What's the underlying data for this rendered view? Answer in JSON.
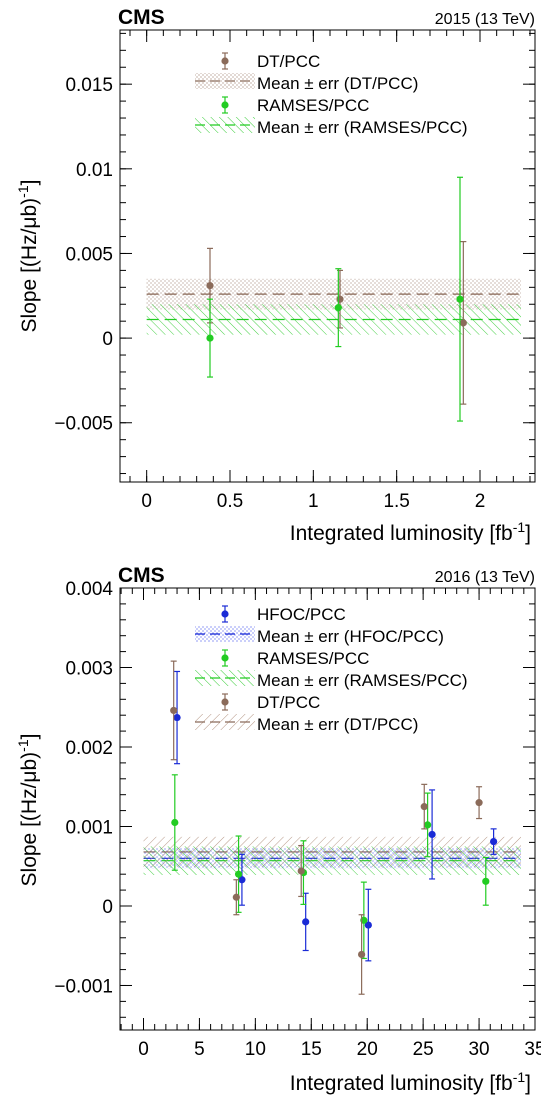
{
  "colors": {
    "dt": "#8b6b5a",
    "ramses": "#22cc22",
    "hfoc": "#1a2bd6"
  },
  "chart_data": [
    {
      "type": "scatter",
      "title": "CMS",
      "subtitle": "2015 (13 TeV)",
      "xlabel": "Integrated luminosity [fb",
      "xlabel_sup": "-1",
      "ylabel": "Slope [(Hz/μb)",
      "ylabel_sup": "-1",
      "xlim": [
        -0.16,
        2.33
      ],
      "ylim": [
        -0.0085,
        0.0182
      ],
      "xticks": [
        0,
        0.5,
        1,
        1.5,
        2
      ],
      "xtick_labels": [
        "0",
        "0.5",
        "1",
        "1.5",
        "2"
      ],
      "yticks": [
        -0.005,
        0,
        0.005,
        0.01,
        0.015
      ],
      "ytick_labels": [
        "−0.005",
        "0",
        "0.005",
        "0.01",
        "0.015"
      ],
      "series": [
        {
          "name": "DT/PCC",
          "color_key": "dt",
          "points": [
            {
              "x": 0.38,
              "y": 0.0031,
              "err": 0.0022
            },
            {
              "x": 1.16,
              "y": 0.0023,
              "err": 0.0017
            },
            {
              "x": 1.9,
              "y": 0.0009,
              "err": 0.0048
            }
          ],
          "mean": {
            "label": "Mean ± err (DT/PCC)",
            "value": 0.0026,
            "err": 0.0009
          }
        },
        {
          "name": "RAMSES/PCC",
          "color_key": "ramses",
          "points": [
            {
              "x": 0.38,
              "y": 0.0,
              "err": 0.0023
            },
            {
              "x": 1.15,
              "y": 0.0018,
              "err": 0.0023
            },
            {
              "x": 1.88,
              "y": 0.0023,
              "err": 0.0072
            }
          ],
          "mean": {
            "label": "Mean ± err (RAMSES/PCC)",
            "value": 0.0011,
            "err": 0.0009
          }
        }
      ]
    },
    {
      "type": "scatter",
      "title": "CMS",
      "subtitle": "2016 (13 TeV)",
      "xlabel": "Integrated luminosity [fb",
      "xlabel_sup": "-1",
      "ylabel": "Slope [(Hz/μb)",
      "ylabel_sup": "-1",
      "xlim": [
        -2.1,
        35
      ],
      "ylim": [
        -0.00156,
        0.004
      ],
      "xticks": [
        0,
        5,
        10,
        15,
        20,
        25,
        30,
        35
      ],
      "xtick_labels": [
        "0",
        "5",
        "10",
        "15",
        "20",
        "25",
        "30",
        "35"
      ],
      "yticks": [
        -0.001,
        0,
        0.001,
        0.002,
        0.003,
        0.004
      ],
      "ytick_labels": [
        "−0.001",
        "0",
        "0.001",
        "0.002",
        "0.003",
        "0.004"
      ],
      "series": [
        {
          "name": "HFOC/PCC",
          "color_key": "hfoc",
          "points": [
            {
              "x": 3.0,
              "y": 0.00237,
              "err": 0.00058
            },
            {
              "x": 8.8,
              "y": 0.00033,
              "err": 0.00032
            },
            {
              "x": 14.5,
              "y": -0.0002,
              "err": 0.00036
            },
            {
              "x": 20.1,
              "y": -0.00024,
              "err": 0.00045
            },
            {
              "x": 25.8,
              "y": 0.0009,
              "err": 0.00056
            },
            {
              "x": 31.3,
              "y": 0.00081,
              "err": 0.00016
            }
          ],
          "mean": {
            "label": "Mean ± err (HFOC/PCC)",
            "value": 0.0006,
            "err": 0.00013
          }
        },
        {
          "name": "RAMSES/PCC",
          "color_key": "ramses",
          "points": [
            {
              "x": 2.8,
              "y": 0.00105,
              "err": 0.0006
            },
            {
              "x": 8.5,
              "y": 0.0004,
              "err": 0.00048
            },
            {
              "x": 14.3,
              "y": 0.00042,
              "err": 0.0004
            },
            {
              "x": 19.7,
              "y": -0.00018,
              "err": 0.00048
            },
            {
              "x": 25.4,
              "y": 0.00102,
              "err": 0.0004
            },
            {
              "x": 30.6,
              "y": 0.00031,
              "err": 0.0003
            }
          ],
          "mean": {
            "label": "Mean ± err (RAMSES/PCC)",
            "value": 0.00057,
            "err": 0.00018
          }
        },
        {
          "name": "DT/PCC",
          "color_key": "dt",
          "points": [
            {
              "x": 2.7,
              "y": 0.00246,
              "err": 0.00062
            },
            {
              "x": 8.3,
              "y": 0.00011,
              "err": 0.00022
            },
            {
              "x": 14.1,
              "y": 0.00044,
              "err": 0.00032
            },
            {
              "x": 19.5,
              "y": -0.00061,
              "err": 0.0005
            },
            {
              "x": 25.1,
              "y": 0.00125,
              "err": 0.00028
            },
            {
              "x": 30.0,
              "y": 0.0013,
              "err": 0.0002
            }
          ],
          "mean": {
            "label": "Mean ± err (DT/PCC)",
            "value": 0.00068,
            "err": 0.00019
          }
        }
      ]
    }
  ]
}
